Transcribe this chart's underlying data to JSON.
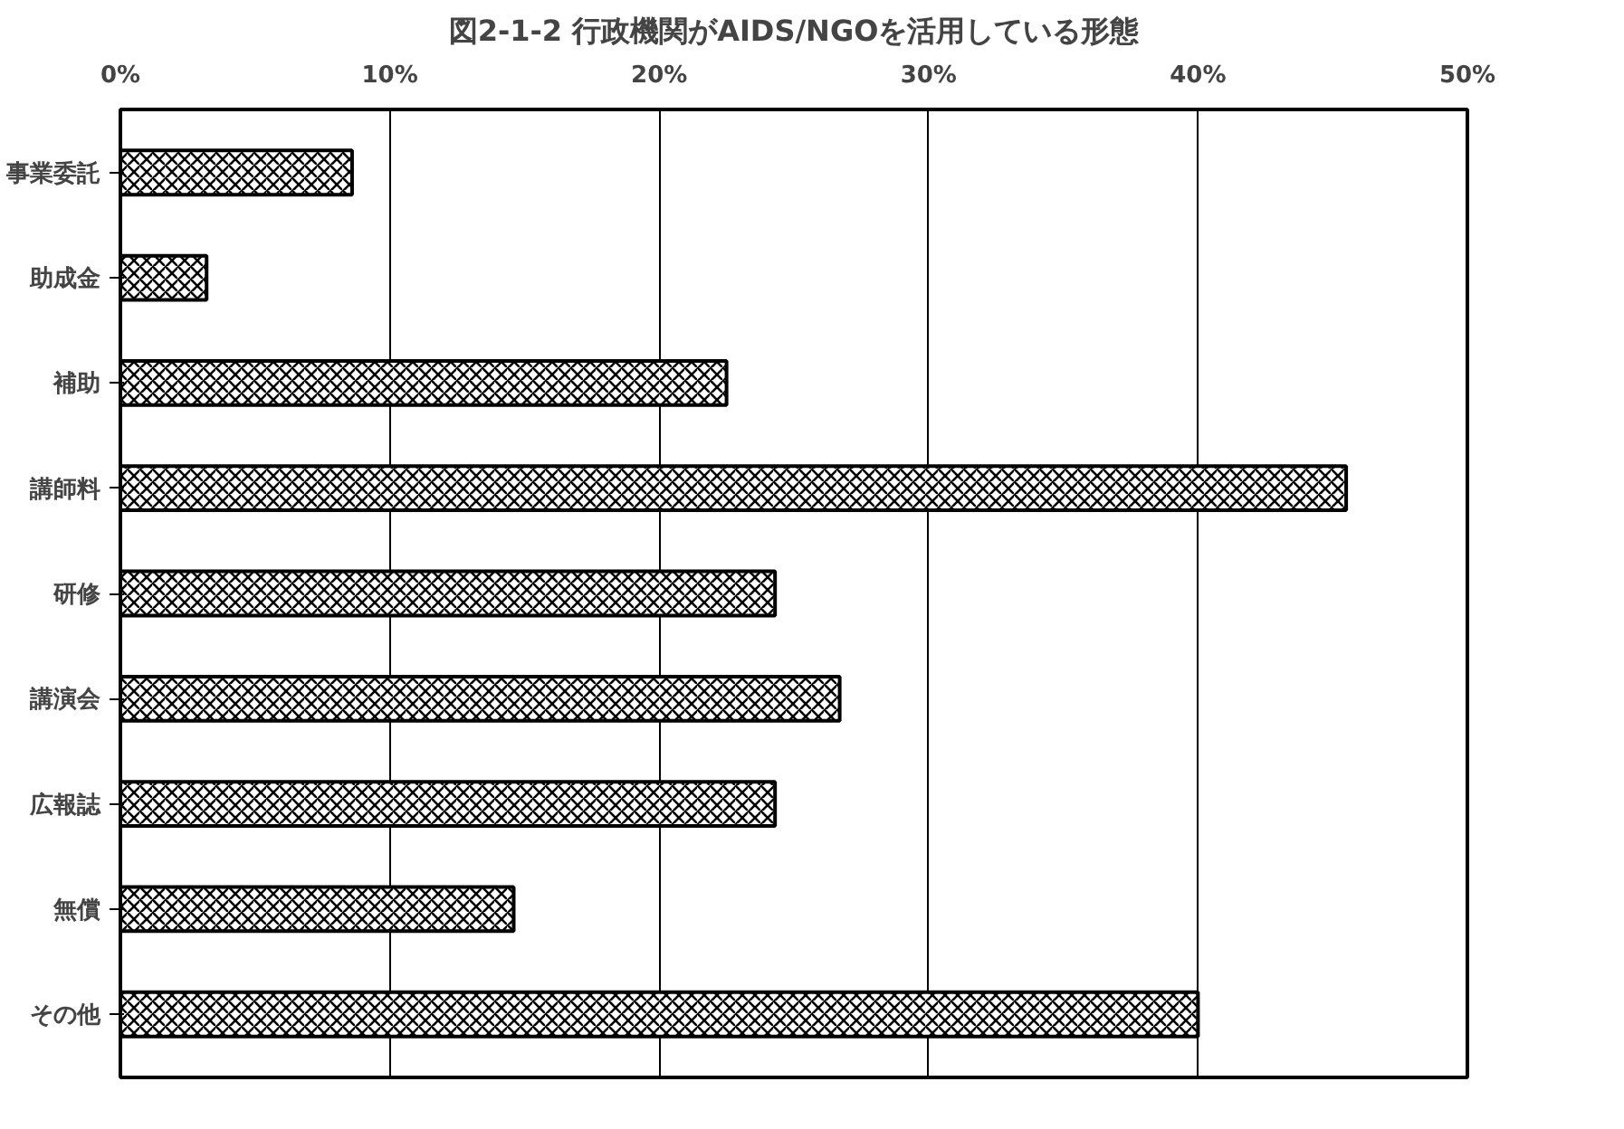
{
  "chart_data": {
    "type": "bar",
    "orientation": "horizontal",
    "title": "図2-1-2 行政機関がAIDS/NGOを活用している形態",
    "categories": [
      "事業委託",
      "助成金",
      "補助",
      "講師料",
      "研修",
      "講演会",
      "広報誌",
      "無償",
      "その他"
    ],
    "values": [
      8.6,
      3.2,
      22.5,
      45.5,
      24.3,
      26.7,
      24.3,
      14.6,
      40.0
    ],
    "color": "#000000",
    "xlim": [
      0,
      50
    ],
    "xticks": [
      {
        "value": 0,
        "label": "0%"
      },
      {
        "value": 10,
        "label": "10%"
      },
      {
        "value": 20,
        "label": "20%"
      },
      {
        "value": 30,
        "label": "30%"
      },
      {
        "value": 40,
        "label": "40%"
      },
      {
        "value": 50,
        "label": "50%"
      }
    ],
    "grid": "x"
  }
}
